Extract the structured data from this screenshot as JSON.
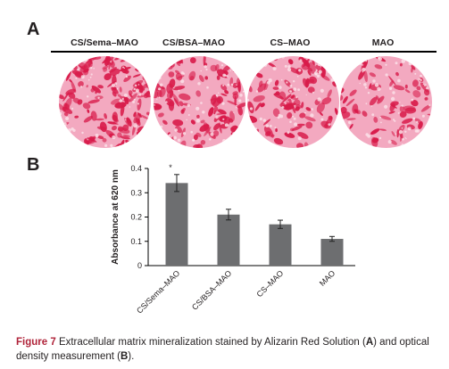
{
  "panel_a": {
    "letter": "A",
    "groups": [
      {
        "label": "CS/Sema–MAO",
        "stain_density": 0.62
      },
      {
        "label": "CS/BSA–MAO",
        "stain_density": 0.5
      },
      {
        "label": "CS–MAO",
        "stain_density": 0.42
      },
      {
        "label": "MAO",
        "stain_density": 0.32
      }
    ],
    "colors": {
      "stain": "#d81b4a",
      "background": "#f3a9c0"
    }
  },
  "panel_b": {
    "letter": "B"
  },
  "chart_data": {
    "type": "bar",
    "categories": [
      "CS/Sema–MAO",
      "CS/BSA–MAO",
      "CS–MAO",
      "MAO"
    ],
    "values": [
      0.34,
      0.21,
      0.17,
      0.11
    ],
    "errors": [
      0.035,
      0.022,
      0.017,
      0.01
    ],
    "annotations": [
      {
        "category": "CS/Sema–MAO",
        "text": "*"
      }
    ],
    "ylabel": "Absorbance at 620 nm",
    "yticks": [
      "0",
      "0.1",
      "0.2",
      "0.3",
      "0.4"
    ],
    "ylim": [
      0,
      0.4
    ],
    "bar_color": "#6d6e70",
    "grid": false
  },
  "caption": {
    "label": "Figure 7",
    "text_1": "Extracellular matrix mineralization stained by Alizarin Red Solution (",
    "ref_a": "A",
    "text_2": ") and optical density measurement (",
    "ref_b": "B",
    "text_3": ")."
  }
}
